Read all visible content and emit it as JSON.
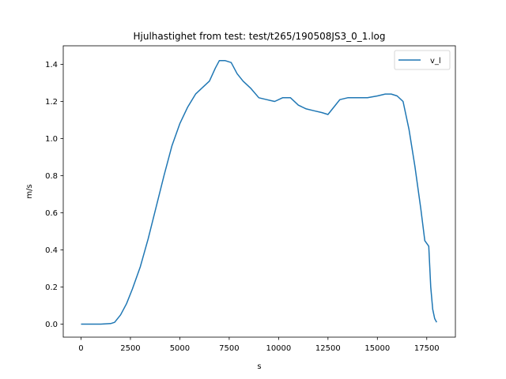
{
  "chart_data": {
    "type": "line",
    "title": "Hjulhastighet from test: test/t265/190508JS3_0_1.log",
    "xlabel": "s",
    "ylabel": "m/s",
    "xlim": [
      -900,
      18950
    ],
    "ylim": [
      -0.07,
      1.5
    ],
    "xticks": [
      0,
      2500,
      5000,
      7500,
      10000,
      12500,
      15000,
      17500
    ],
    "xtick_labels": [
      "0",
      "2500",
      "5000",
      "7500",
      "10000",
      "12500",
      "15000",
      "17500"
    ],
    "yticks": [
      0.0,
      0.2,
      0.4,
      0.6,
      0.8,
      1.0,
      1.2,
      1.4
    ],
    "ytick_labels": [
      "0.0",
      "0.2",
      "0.4",
      "0.6",
      "0.8",
      "1.0",
      "1.2",
      "1.4"
    ],
    "grid": false,
    "legend_position": "top-right",
    "series": [
      {
        "name": "v_l",
        "color": "#1f77b4",
        "points": [
          [
            0,
            0.0
          ],
          [
            500,
            0.0
          ],
          [
            1000,
            0.0
          ],
          [
            1500,
            0.003
          ],
          [
            1700,
            0.01
          ],
          [
            2000,
            0.05
          ],
          [
            2300,
            0.11
          ],
          [
            2600,
            0.19
          ],
          [
            3000,
            0.31
          ],
          [
            3400,
            0.46
          ],
          [
            3800,
            0.63
          ],
          [
            4200,
            0.8
          ],
          [
            4600,
            0.96
          ],
          [
            5000,
            1.08
          ],
          [
            5400,
            1.17
          ],
          [
            5800,
            1.24
          ],
          [
            6200,
            1.28
          ],
          [
            6500,
            1.31
          ],
          [
            6800,
            1.38
          ],
          [
            7000,
            1.42
          ],
          [
            7300,
            1.42
          ],
          [
            7600,
            1.41
          ],
          [
            7900,
            1.35
          ],
          [
            8200,
            1.31
          ],
          [
            8600,
            1.27
          ],
          [
            9000,
            1.22
          ],
          [
            9400,
            1.21
          ],
          [
            9800,
            1.2
          ],
          [
            10200,
            1.22
          ],
          [
            10600,
            1.22
          ],
          [
            11000,
            1.18
          ],
          [
            11400,
            1.16
          ],
          [
            11800,
            1.15
          ],
          [
            12200,
            1.14
          ],
          [
            12500,
            1.13
          ],
          [
            12800,
            1.17
          ],
          [
            13100,
            1.21
          ],
          [
            13500,
            1.22
          ],
          [
            14000,
            1.22
          ],
          [
            14500,
            1.22
          ],
          [
            15000,
            1.23
          ],
          [
            15400,
            1.24
          ],
          [
            15700,
            1.24
          ],
          [
            16000,
            1.23
          ],
          [
            16300,
            1.2
          ],
          [
            16600,
            1.05
          ],
          [
            16900,
            0.85
          ],
          [
            17200,
            0.62
          ],
          [
            17400,
            0.45
          ],
          [
            17600,
            0.42
          ],
          [
            17700,
            0.2
          ],
          [
            17800,
            0.08
          ],
          [
            17900,
            0.03
          ],
          [
            18000,
            0.01
          ]
        ]
      }
    ]
  }
}
